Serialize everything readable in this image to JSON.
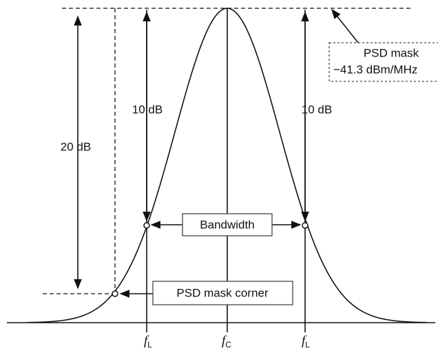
{
  "labels": {
    "mask_title": "PSD mask",
    "mask_level": "−41.3 dBm/MHz",
    "db_left": "10 dB",
    "db_right": "10 dB",
    "db_total": "20 dB",
    "bandwidth": "Bandwidth",
    "corner": "PSD mask corner"
  },
  "axis": {
    "f_left": {
      "base": "f",
      "sub": "L"
    },
    "f_center": {
      "base": "f",
      "sub": "C"
    },
    "f_right": {
      "base": "f",
      "sub": "L"
    }
  }
}
